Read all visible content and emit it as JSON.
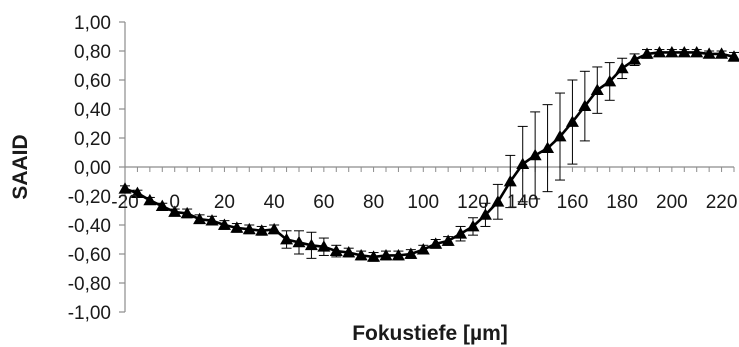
{
  "chart_data": {
    "type": "line",
    "title": "",
    "xlabel": "Fokustiefe [µm]",
    "ylabel": "SAAID",
    "xlim": [
      -20,
      225
    ],
    "ylim": [
      -1.0,
      1.0
    ],
    "x_ticks": [
      -20,
      0,
      20,
      40,
      60,
      80,
      100,
      120,
      140,
      160,
      180,
      200,
      220
    ],
    "x_tick_labels": [
      "-20",
      "0",
      "20",
      "40",
      "60",
      "80",
      "100",
      "120",
      "140",
      "160",
      "180",
      "200",
      "220"
    ],
    "y_ticks": [
      1.0,
      0.8,
      0.6,
      0.4,
      0.2,
      0.0,
      -0.2,
      -0.4,
      -0.6,
      -0.8,
      -1.0
    ],
    "y_tick_labels": [
      "1,00",
      "0,80",
      "0,60",
      "0,40",
      "0,20",
      "0,00",
      "-0,20",
      "-0,40",
      "-0,60",
      "-0,80",
      "-1,00"
    ],
    "grid": false,
    "legend": "none",
    "marker": "triangle",
    "line_color": "#000000",
    "series": [
      {
        "x": [
          -20,
          -15,
          -10,
          -5,
          0,
          5,
          10,
          15,
          20,
          25,
          30,
          35,
          40,
          45,
          50,
          55,
          60,
          65,
          70,
          75,
          80,
          85,
          90,
          95,
          100,
          105,
          110,
          115,
          120,
          125,
          130,
          135,
          140,
          145,
          150,
          155,
          160,
          165,
          170,
          175,
          180,
          185,
          190,
          195,
          200,
          205,
          210,
          215,
          220,
          225
        ],
        "y": [
          -0.15,
          -0.18,
          -0.23,
          -0.27,
          -0.31,
          -0.32,
          -0.36,
          -0.37,
          -0.4,
          -0.42,
          -0.43,
          -0.44,
          -0.43,
          -0.5,
          -0.52,
          -0.54,
          -0.55,
          -0.58,
          -0.59,
          -0.61,
          -0.62,
          -0.61,
          -0.61,
          -0.6,
          -0.57,
          -0.53,
          -0.51,
          -0.46,
          -0.41,
          -0.33,
          -0.24,
          -0.1,
          0.02,
          0.08,
          0.13,
          0.21,
          0.31,
          0.42,
          0.53,
          0.59,
          0.68,
          0.74,
          0.78,
          0.79,
          0.79,
          0.79,
          0.79,
          0.78,
          0.78,
          0.76
        ],
        "error": [
          0.02,
          0.02,
          0.02,
          0.02,
          0.02,
          0.03,
          0.03,
          0.03,
          0.03,
          0.03,
          0.03,
          0.03,
          0.03,
          0.06,
          0.08,
          0.09,
          0.06,
          0.04,
          0.03,
          0.03,
          0.03,
          0.03,
          0.03,
          0.03,
          0.03,
          0.03,
          0.03,
          0.05,
          0.06,
          0.08,
          0.12,
          0.18,
          0.26,
          0.3,
          0.3,
          0.3,
          0.29,
          0.24,
          0.16,
          0.13,
          0.07,
          0.04,
          0.03,
          0.02,
          0.02,
          0.02,
          0.02,
          0.02,
          0.02,
          0.03
        ]
      }
    ]
  }
}
